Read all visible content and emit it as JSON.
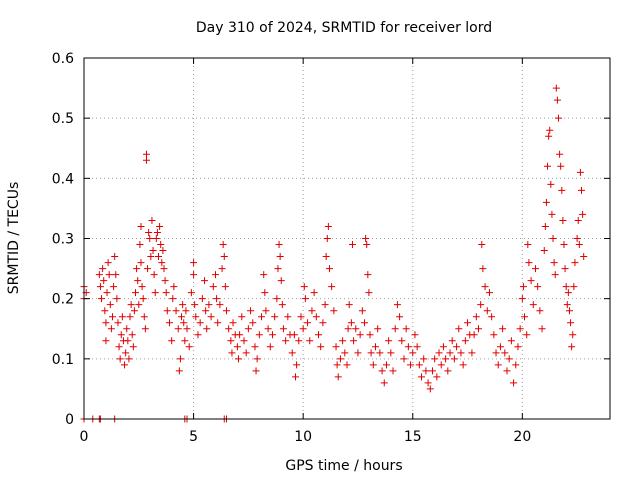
{
  "chart_data": {
    "type": "scatter",
    "title": "Day 310 of 2024, SRMTID for receiver lord",
    "xlabel": "GPS time / hours",
    "ylabel": "SRMTID / TECUs",
    "xlim": [
      0,
      24
    ],
    "ylim": [
      0,
      0.6
    ],
    "x_ticks": [
      0,
      5,
      10,
      15,
      20
    ],
    "x_tick_labels": [
      "0",
      "5",
      "10",
      "15",
      "20"
    ],
    "y_ticks": [
      0,
      0.1,
      0.2,
      0.3,
      0.4,
      0.5,
      0.6
    ],
    "y_tick_labels": [
      "0",
      "0.1",
      "0.2",
      "0.3",
      "0.4",
      "0.5",
      "0.6"
    ],
    "grid": true,
    "marker": "plus",
    "series": [
      {
        "name": "SRMTID",
        "color": "#e00000",
        "points": [
          [
            0.0,
            0.22
          ],
          [
            0.0,
            0.2
          ],
          [
            0.0,
            0.0
          ],
          [
            0.1,
            0.21
          ],
          [
            0.4,
            0.0
          ],
          [
            0.7,
            0.0
          ],
          [
            0.75,
            0.0
          ],
          [
            1.4,
            0.0
          ],
          [
            4.6,
            0.0
          ],
          [
            4.7,
            0.0
          ],
          [
            6.4,
            0.0
          ],
          [
            6.5,
            0.0
          ],
          [
            0.7,
            0.24
          ],
          [
            0.75,
            0.22
          ],
          [
            0.8,
            0.2
          ],
          [
            0.85,
            0.25
          ],
          [
            0.9,
            0.23
          ],
          [
            0.95,
            0.18
          ],
          [
            1.0,
            0.16
          ],
          [
            1.0,
            0.13
          ],
          [
            1.05,
            0.21
          ],
          [
            1.1,
            0.26
          ],
          [
            1.15,
            0.24
          ],
          [
            1.2,
            0.19
          ],
          [
            1.25,
            0.15
          ],
          [
            1.3,
            0.17
          ],
          [
            1.35,
            0.22
          ],
          [
            1.4,
            0.27
          ],
          [
            1.45,
            0.24
          ],
          [
            1.5,
            0.2
          ],
          [
            1.55,
            0.16
          ],
          [
            1.6,
            0.12
          ],
          [
            1.65,
            0.1
          ],
          [
            1.7,
            0.14
          ],
          [
            1.75,
            0.17
          ],
          [
            1.8,
            0.13
          ],
          [
            1.85,
            0.09
          ],
          [
            1.9,
            0.11
          ],
          [
            1.95,
            0.15
          ],
          [
            2.0,
            0.13
          ],
          [
            2.05,
            0.1
          ],
          [
            2.1,
            0.17
          ],
          [
            2.15,
            0.19
          ],
          [
            2.2,
            0.14
          ],
          [
            2.25,
            0.12
          ],
          [
            2.3,
            0.18
          ],
          [
            2.35,
            0.21
          ],
          [
            2.4,
            0.25
          ],
          [
            2.45,
            0.23
          ],
          [
            2.5,
            0.19
          ],
          [
            2.55,
            0.29
          ],
          [
            2.6,
            0.32
          ],
          [
            2.6,
            0.26
          ],
          [
            2.65,
            0.22
          ],
          [
            2.7,
            0.2
          ],
          [
            2.75,
            0.17
          ],
          [
            2.8,
            0.15
          ],
          [
            2.85,
            0.44
          ],
          [
            2.85,
            0.43
          ],
          [
            2.9,
            0.25
          ],
          [
            2.95,
            0.31
          ],
          [
            3.0,
            0.3
          ],
          [
            3.05,
            0.27
          ],
          [
            3.1,
            0.33
          ],
          [
            3.15,
            0.28
          ],
          [
            3.2,
            0.24
          ],
          [
            3.25,
            0.21
          ],
          [
            3.3,
            0.3
          ],
          [
            3.35,
            0.31
          ],
          [
            3.4,
            0.27
          ],
          [
            3.45,
            0.32
          ],
          [
            3.5,
            0.29
          ],
          [
            3.55,
            0.26
          ],
          [
            3.6,
            0.28
          ],
          [
            3.65,
            0.25
          ],
          [
            3.7,
            0.23
          ],
          [
            3.75,
            0.21
          ],
          [
            3.8,
            0.18
          ],
          [
            3.9,
            0.16
          ],
          [
            4.0,
            0.13
          ],
          [
            4.05,
            0.2
          ],
          [
            4.1,
            0.22
          ],
          [
            4.2,
            0.18
          ],
          [
            4.3,
            0.15
          ],
          [
            4.35,
            0.08
          ],
          [
            4.4,
            0.1
          ],
          [
            4.45,
            0.17
          ],
          [
            4.5,
            0.19
          ],
          [
            4.55,
            0.16
          ],
          [
            4.6,
            0.13
          ],
          [
            4.65,
            0.18
          ],
          [
            4.7,
            0.15
          ],
          [
            4.8,
            0.12
          ],
          [
            4.9,
            0.21
          ],
          [
            5.0,
            0.26
          ],
          [
            5.0,
            0.24
          ],
          [
            5.05,
            0.19
          ],
          [
            5.1,
            0.17
          ],
          [
            5.2,
            0.14
          ],
          [
            5.3,
            0.16
          ],
          [
            5.4,
            0.2
          ],
          [
            5.5,
            0.23
          ],
          [
            5.55,
            0.18
          ],
          [
            5.6,
            0.15
          ],
          [
            5.7,
            0.19
          ],
          [
            5.8,
            0.17
          ],
          [
            5.9,
            0.22
          ],
          [
            6.0,
            0.24
          ],
          [
            6.05,
            0.2
          ],
          [
            6.1,
            0.16
          ],
          [
            6.2,
            0.19
          ],
          [
            6.3,
            0.25
          ],
          [
            6.35,
            0.29
          ],
          [
            6.4,
            0.27
          ],
          [
            6.45,
            0.22
          ],
          [
            6.5,
            0.18
          ],
          [
            6.6,
            0.15
          ],
          [
            6.7,
            0.13
          ],
          [
            6.75,
            0.11
          ],
          [
            6.8,
            0.16
          ],
          [
            6.9,
            0.14
          ],
          [
            7.0,
            0.12
          ],
          [
            7.05,
            0.1
          ],
          [
            7.1,
            0.14
          ],
          [
            7.2,
            0.17
          ],
          [
            7.3,
            0.13
          ],
          [
            7.4,
            0.11
          ],
          [
            7.5,
            0.15
          ],
          [
            7.6,
            0.18
          ],
          [
            7.7,
            0.16
          ],
          [
            7.8,
            0.12
          ],
          [
            7.85,
            0.08
          ],
          [
            7.9,
            0.1
          ],
          [
            8.0,
            0.14
          ],
          [
            8.1,
            0.17
          ],
          [
            8.2,
            0.24
          ],
          [
            8.25,
            0.21
          ],
          [
            8.3,
            0.18
          ],
          [
            8.4,
            0.15
          ],
          [
            8.5,
            0.12
          ],
          [
            8.6,
            0.14
          ],
          [
            8.7,
            0.17
          ],
          [
            8.8,
            0.2
          ],
          [
            8.85,
            0.25
          ],
          [
            8.9,
            0.29
          ],
          [
            8.95,
            0.27
          ],
          [
            9.0,
            0.23
          ],
          [
            9.05,
            0.19
          ],
          [
            9.1,
            0.15
          ],
          [
            9.2,
            0.13
          ],
          [
            9.3,
            0.17
          ],
          [
            9.4,
            0.14
          ],
          [
            9.5,
            0.11
          ],
          [
            9.6,
            0.14
          ],
          [
            9.65,
            0.07
          ],
          [
            9.7,
            0.09
          ],
          [
            9.8,
            0.13
          ],
          [
            9.9,
            0.17
          ],
          [
            10.0,
            0.15
          ],
          [
            10.05,
            0.22
          ],
          [
            10.1,
            0.2
          ],
          [
            10.2,
            0.16
          ],
          [
            10.3,
            0.13
          ],
          [
            10.4,
            0.18
          ],
          [
            10.5,
            0.21
          ],
          [
            10.6,
            0.17
          ],
          [
            10.7,
            0.14
          ],
          [
            10.8,
            0.12
          ],
          [
            10.9,
            0.16
          ],
          [
            11.0,
            0.19
          ],
          [
            11.05,
            0.27
          ],
          [
            11.1,
            0.3
          ],
          [
            11.15,
            0.32
          ],
          [
            11.2,
            0.25
          ],
          [
            11.3,
            0.22
          ],
          [
            11.4,
            0.18
          ],
          [
            11.5,
            0.12
          ],
          [
            11.55,
            0.09
          ],
          [
            11.6,
            0.07
          ],
          [
            11.7,
            0.1
          ],
          [
            11.8,
            0.13
          ],
          [
            11.9,
            0.11
          ],
          [
            12.0,
            0.09
          ],
          [
            12.05,
            0.15
          ],
          [
            12.1,
            0.19
          ],
          [
            12.2,
            0.16
          ],
          [
            12.25,
            0.29
          ],
          [
            12.3,
            0.13
          ],
          [
            12.4,
            0.15
          ],
          [
            12.5,
            0.11
          ],
          [
            12.6,
            0.14
          ],
          [
            12.7,
            0.18
          ],
          [
            12.8,
            0.16
          ],
          [
            12.85,
            0.3
          ],
          [
            12.9,
            0.29
          ],
          [
            12.95,
            0.24
          ],
          [
            13.0,
            0.21
          ],
          [
            13.05,
            0.14
          ],
          [
            13.1,
            0.11
          ],
          [
            13.2,
            0.09
          ],
          [
            13.3,
            0.12
          ],
          [
            13.4,
            0.15
          ],
          [
            13.5,
            0.11
          ],
          [
            13.6,
            0.08
          ],
          [
            13.7,
            0.06
          ],
          [
            13.8,
            0.09
          ],
          [
            13.9,
            0.13
          ],
          [
            14.0,
            0.11
          ],
          [
            14.1,
            0.08
          ],
          [
            14.2,
            0.15
          ],
          [
            14.3,
            0.19
          ],
          [
            14.4,
            0.17
          ],
          [
            14.5,
            0.13
          ],
          [
            14.6,
            0.1
          ],
          [
            14.7,
            0.15
          ],
          [
            14.8,
            0.12
          ],
          [
            14.9,
            0.09
          ],
          [
            15.0,
            0.11
          ],
          [
            15.1,
            0.14
          ],
          [
            15.2,
            0.12
          ],
          [
            15.3,
            0.09
          ],
          [
            15.4,
            0.07
          ],
          [
            15.5,
            0.1
          ],
          [
            15.6,
            0.08
          ],
          [
            15.7,
            0.06
          ],
          [
            15.8,
            0.05
          ],
          [
            15.9,
            0.08
          ],
          [
            16.0,
            0.1
          ],
          [
            16.1,
            0.07
          ],
          [
            16.2,
            0.11
          ],
          [
            16.3,
            0.09
          ],
          [
            16.4,
            0.12
          ],
          [
            16.5,
            0.1
          ],
          [
            16.6,
            0.08
          ],
          [
            16.7,
            0.11
          ],
          [
            16.8,
            0.13
          ],
          [
            16.9,
            0.1
          ],
          [
            17.0,
            0.12
          ],
          [
            17.1,
            0.15
          ],
          [
            17.2,
            0.11
          ],
          [
            17.3,
            0.09
          ],
          [
            17.4,
            0.13
          ],
          [
            17.5,
            0.16
          ],
          [
            17.6,
            0.14
          ],
          [
            17.7,
            0.11
          ],
          [
            17.8,
            0.14
          ],
          [
            17.9,
            0.17
          ],
          [
            18.0,
            0.15
          ],
          [
            18.1,
            0.19
          ],
          [
            18.15,
            0.29
          ],
          [
            18.2,
            0.25
          ],
          [
            18.3,
            0.22
          ],
          [
            18.4,
            0.18
          ],
          [
            18.5,
            0.21
          ],
          [
            18.6,
            0.17
          ],
          [
            18.7,
            0.14
          ],
          [
            18.8,
            0.11
          ],
          [
            18.9,
            0.09
          ],
          [
            19.0,
            0.12
          ],
          [
            19.1,
            0.15
          ],
          [
            19.2,
            0.11
          ],
          [
            19.3,
            0.08
          ],
          [
            19.4,
            0.1
          ],
          [
            19.5,
            0.13
          ],
          [
            19.6,
            0.06
          ],
          [
            19.7,
            0.09
          ],
          [
            19.8,
            0.12
          ],
          [
            19.9,
            0.15
          ],
          [
            20.0,
            0.2
          ],
          [
            20.05,
            0.22
          ],
          [
            20.1,
            0.17
          ],
          [
            20.2,
            0.14
          ],
          [
            20.25,
            0.29
          ],
          [
            20.3,
            0.26
          ],
          [
            20.4,
            0.23
          ],
          [
            20.5,
            0.19
          ],
          [
            20.6,
            0.25
          ],
          [
            20.7,
            0.22
          ],
          [
            20.8,
            0.18
          ],
          [
            20.9,
            0.15
          ],
          [
            21.0,
            0.28
          ],
          [
            21.05,
            0.32
          ],
          [
            21.1,
            0.36
          ],
          [
            21.15,
            0.42
          ],
          [
            21.2,
            0.47
          ],
          [
            21.25,
            0.48
          ],
          [
            21.3,
            0.39
          ],
          [
            21.35,
            0.34
          ],
          [
            21.4,
            0.3
          ],
          [
            21.45,
            0.26
          ],
          [
            21.5,
            0.24
          ],
          [
            21.55,
            0.55
          ],
          [
            21.6,
            0.53
          ],
          [
            21.65,
            0.5
          ],
          [
            21.7,
            0.44
          ],
          [
            21.75,
            0.42
          ],
          [
            21.8,
            0.38
          ],
          [
            21.85,
            0.33
          ],
          [
            21.9,
            0.29
          ],
          [
            21.95,
            0.25
          ],
          [
            22.0,
            0.22
          ],
          [
            22.05,
            0.19
          ],
          [
            22.1,
            0.21
          ],
          [
            22.15,
            0.18
          ],
          [
            22.2,
            0.16
          ],
          [
            22.25,
            0.12
          ],
          [
            22.3,
            0.14
          ],
          [
            22.35,
            0.22
          ],
          [
            22.4,
            0.26
          ],
          [
            22.5,
            0.3
          ],
          [
            22.55,
            0.33
          ],
          [
            22.6,
            0.29
          ],
          [
            22.65,
            0.41
          ],
          [
            22.7,
            0.38
          ],
          [
            22.75,
            0.34
          ],
          [
            22.8,
            0.27
          ]
        ]
      }
    ]
  }
}
